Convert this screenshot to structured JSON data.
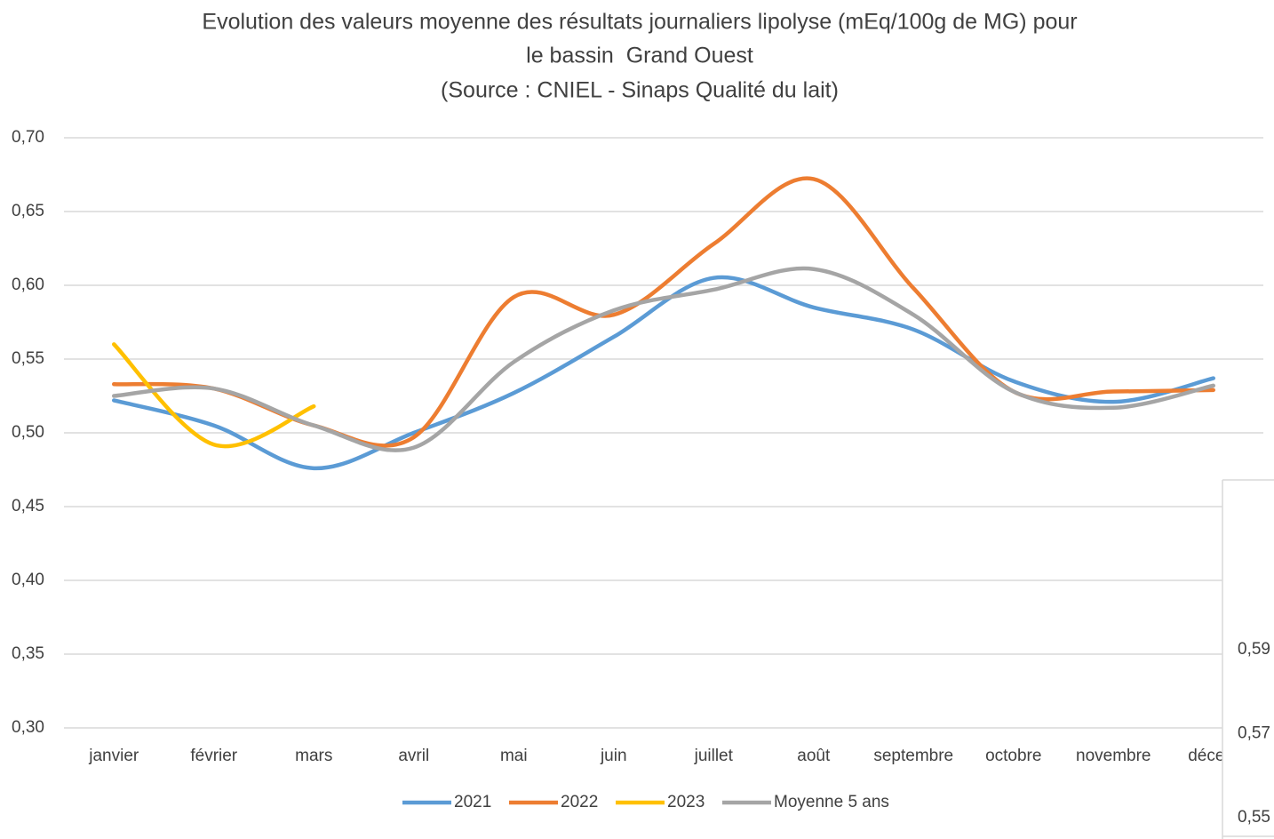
{
  "chart_data": [
    {
      "type": "line",
      "title_lines": [
        "Evolution des valeurs moyenne des résultats journaliers lipolyse (mEq/100g de MG) pour",
        "le bassin  Grand Ouest",
        "(Source : CNIEL - Sinaps Qualité du lait)"
      ],
      "categories": [
        "janvier",
        "février",
        "mars",
        "avril",
        "mai",
        "juin",
        "juillet",
        "août",
        "septembre",
        "octobre",
        "novembre",
        "décem"
      ],
      "series": [
        {
          "name": "2021",
          "color": "#5b9bd5",
          "values": [
            0.522,
            0.505,
            0.476,
            0.5,
            0.527,
            0.565,
            0.605,
            0.585,
            0.57,
            0.535,
            0.521,
            0.537
          ]
        },
        {
          "name": "2022",
          "color": "#ed7d31",
          "values": [
            0.533,
            0.53,
            0.505,
            0.497,
            0.592,
            0.58,
            0.628,
            0.672,
            0.598,
            0.528,
            0.528,
            0.529
          ]
        },
        {
          "name": "2023",
          "color": "#ffc000",
          "values": [
            0.56,
            0.492,
            0.518,
            null,
            null,
            null,
            null,
            null,
            null,
            null,
            null,
            null
          ]
        },
        {
          "name": "Moyenne 5 ans",
          "color": "#a5a5a5",
          "values": [
            0.525,
            0.53,
            0.505,
            0.49,
            0.548,
            0.583,
            0.597,
            0.611,
            0.58,
            0.528,
            0.517,
            0.532
          ]
        }
      ],
      "ylim": [
        0.3,
        0.7
      ],
      "yticks": [
        {
          "value": 0.3,
          "label": "0,30"
        },
        {
          "value": 0.35,
          "label": "0,35"
        },
        {
          "value": 0.4,
          "label": "0,40"
        },
        {
          "value": 0.45,
          "label": "0,45"
        },
        {
          "value": 0.5,
          "label": "0,50"
        },
        {
          "value": 0.55,
          "label": "0,55"
        },
        {
          "value": 0.6,
          "label": "0,60"
        },
        {
          "value": 0.65,
          "label": "0,65"
        },
        {
          "value": 0.7,
          "label": "0,70"
        }
      ],
      "grid": true,
      "legend": "bottom"
    },
    {
      "type": "axis-fragment",
      "ylim": [
        0.55,
        0.59
      ],
      "yticks": [
        {
          "value": 0.55,
          "label": "0,55"
        },
        {
          "value": 0.57,
          "label": "0,57"
        },
        {
          "value": 0.59,
          "label": "0,59"
        }
      ]
    }
  ]
}
